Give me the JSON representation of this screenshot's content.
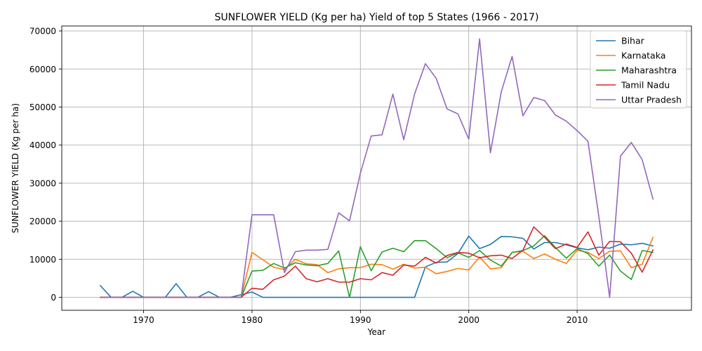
{
  "chart_data": {
    "type": "line",
    "title": "SUNFLOWER YIELD (Kg per ha) Yield of top 5 States (1966 - 2017)",
    "xlabel": "Year",
    "ylabel": "SUNFLOWER YIELD (Kg per ha)",
    "xlim": [
      1962.45,
      2020.55
    ],
    "ylim": [
      -3400,
      71300
    ],
    "xticks": [
      1970,
      1980,
      1990,
      2000,
      2010
    ],
    "yticks": [
      0,
      10000,
      20000,
      30000,
      40000,
      50000,
      60000,
      70000
    ],
    "grid": true,
    "legend_position": "upper right",
    "x": [
      1966,
      1967,
      1968,
      1969,
      1970,
      1971,
      1972,
      1973,
      1974,
      1975,
      1976,
      1977,
      1978,
      1979,
      1980,
      1981,
      1982,
      1983,
      1984,
      1985,
      1986,
      1987,
      1988,
      1989,
      1990,
      1991,
      1992,
      1993,
      1994,
      1995,
      1996,
      1997,
      1998,
      1999,
      2000,
      2001,
      2002,
      2003,
      2004,
      2005,
      2006,
      2007,
      2008,
      2009,
      2010,
      2011,
      2012,
      2013,
      2014,
      2015,
      2016,
      2017
    ],
    "series": [
      {
        "name": "Bihar",
        "color": "#1f77b4",
        "values": [
          3100,
          0,
          0,
          1600,
          0,
          0,
          0,
          3600,
          0,
          0,
          1500,
          0,
          0,
          700,
          1400,
          0,
          0,
          0,
          0,
          0,
          0,
          0,
          0,
          0,
          0,
          0,
          0,
          0,
          0,
          0,
          8000,
          9200,
          9300,
          11500,
          16100,
          12800,
          13900,
          16000,
          15900,
          15500,
          12700,
          14400,
          14400,
          13800,
          13000,
          12500,
          13200,
          12900,
          14000,
          13800,
          14200,
          13500
        ]
      },
      {
        "name": "Karnataka",
        "color": "#ff7f0e",
        "values": [
          0,
          0,
          0,
          0,
          0,
          0,
          0,
          0,
          0,
          0,
          0,
          0,
          0,
          0,
          11800,
          9900,
          7900,
          7300,
          10000,
          8800,
          8600,
          6500,
          7500,
          7800,
          7800,
          8700,
          8600,
          7400,
          8700,
          7700,
          7900,
          6200,
          6800,
          7600,
          7200,
          10600,
          7500,
          7800,
          11800,
          12100,
          10200,
          11400,
          10000,
          8900,
          12400,
          11800,
          10200,
          12100,
          12200,
          7800,
          8700,
          15800
        ]
      },
      {
        "name": "Maharashtra",
        "color": "#2ca02c",
        "values": [
          0,
          0,
          0,
          0,
          0,
          0,
          0,
          0,
          0,
          0,
          0,
          0,
          0,
          0,
          6900,
          7100,
          8900,
          7700,
          9100,
          8500,
          8300,
          8900,
          12200,
          0,
          13300,
          7000,
          11900,
          12900,
          12000,
          14900,
          14900,
          12800,
          10400,
          11700,
          10500,
          12300,
          9800,
          8200,
          11800,
          12300,
          13500,
          16200,
          13100,
          10300,
          12800,
          11500,
          8200,
          11100,
          6900,
          4700,
          12300,
          11800
        ]
      },
      {
        "name": "Tamil Nadu",
        "color": "#d62728",
        "values": [
          0,
          0,
          0,
          0,
          0,
          0,
          0,
          0,
          0,
          0,
          0,
          0,
          0,
          0,
          2400,
          2100,
          4600,
          5600,
          8200,
          4900,
          4100,
          4900,
          4000,
          4000,
          4900,
          4600,
          6500,
          5800,
          8500,
          8200,
          10500,
          9000,
          11000,
          11800,
          11600,
          10400,
          10900,
          11100,
          10200,
          12400,
          18500,
          15800,
          12800,
          14000,
          13100,
          17200,
          11100,
          14700,
          14600,
          11600,
          6600,
          12500
        ]
      },
      {
        "name": "Uttar Pradesh",
        "color": "#9467bd",
        "values": [
          0,
          0,
          0,
          0,
          0,
          0,
          0,
          0,
          0,
          0,
          0,
          0,
          0,
          0,
          21700,
          21700,
          21700,
          6500,
          12000,
          12400,
          12400,
          12600,
          22200,
          20100,
          32600,
          42400,
          42700,
          53400,
          41400,
          53400,
          61400,
          57500,
          49500,
          48200,
          41600,
          67900,
          38000,
          54000,
          63300,
          47700,
          52500,
          51700,
          47900,
          46300,
          43800,
          41000,
          21300,
          0,
          37100,
          40700,
          36200,
          25800
        ]
      }
    ]
  }
}
